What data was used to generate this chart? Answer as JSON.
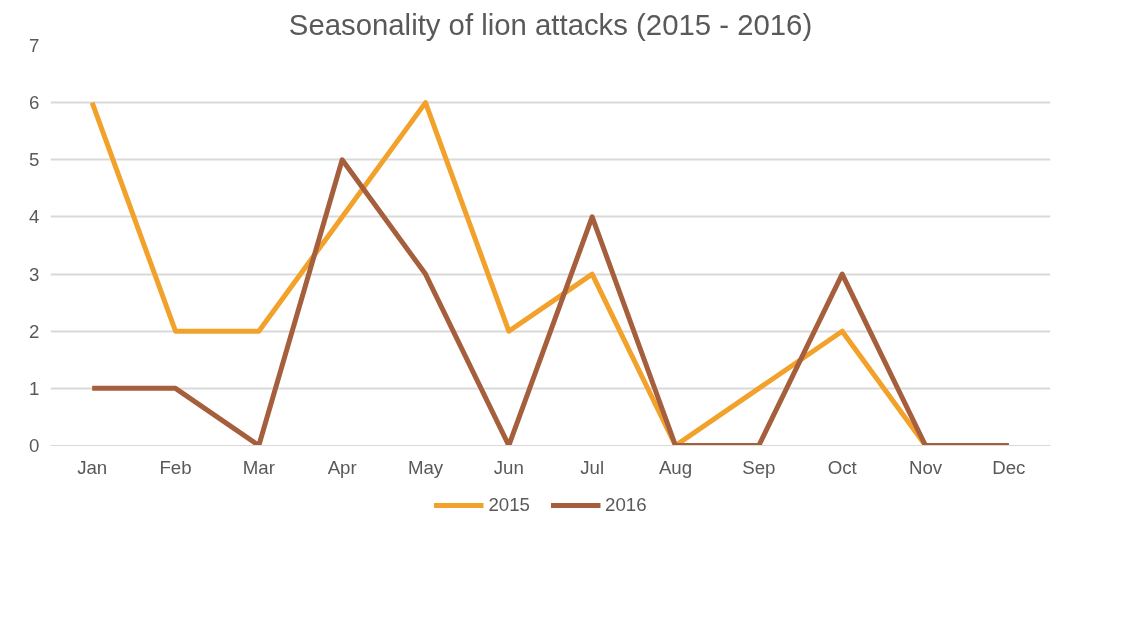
{
  "chart_data": {
    "type": "line",
    "title": "Seasonality of lion attacks (2015 - 2016)",
    "categories": [
      "Jan",
      "Feb",
      "Mar",
      "Apr",
      "May",
      "Jun",
      "Jul",
      "Aug",
      "Sep",
      "Oct",
      "Nov",
      "Dec"
    ],
    "series": [
      {
        "name": "2015",
        "color": "#f2a12a",
        "values": [
          6,
          2,
          2,
          4,
          6,
          2,
          3,
          0,
          1,
          2,
          0,
          0
        ]
      },
      {
        "name": "2016",
        "color": "#a65f3c",
        "values": [
          1,
          1,
          0,
          5,
          3,
          0,
          4,
          0,
          0,
          3,
          0,
          0
        ]
      }
    ],
    "ylim": [
      0,
      7
    ],
    "yticks": [
      0,
      1,
      2,
      3,
      4,
      5,
      6,
      7
    ],
    "grid": "y",
    "legend": "bottom",
    "marker": "none",
    "line_style": "solid"
  }
}
